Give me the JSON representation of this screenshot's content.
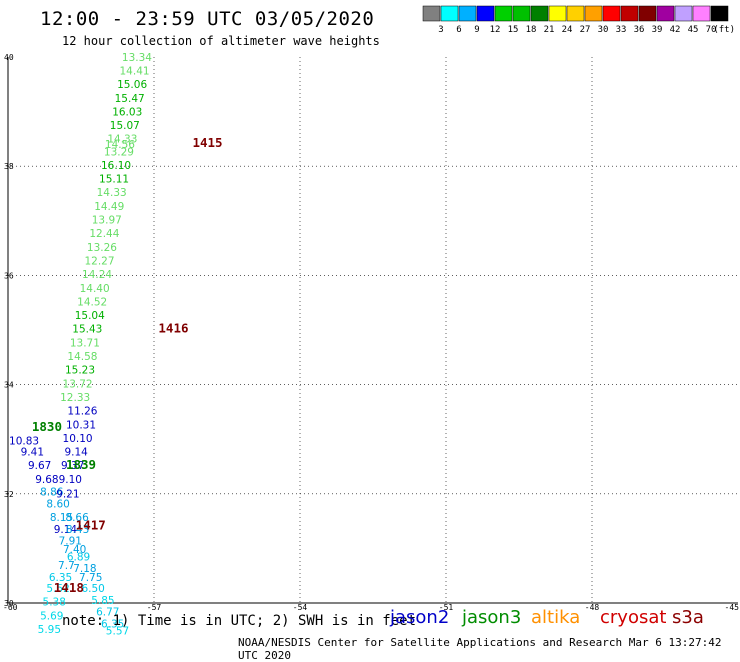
{
  "header": {
    "title": "12:00 - 23:59 UTC 03/05/2020",
    "subtitle": "12 hour collection of altimeter wave heights"
  },
  "color_scale": {
    "labels": [
      "3",
      "6",
      "9",
      "12",
      "15",
      "18",
      "21",
      "24",
      "27",
      "30",
      "33",
      "36",
      "39",
      "42",
      "45",
      "70"
    ],
    "unit": "(ft)",
    "colors": [
      "#808080",
      "#00ffff",
      "#00b0ff",
      "#0000ff",
      "#00d000",
      "#00c000",
      "#008000",
      "#ffff00",
      "#ffd000",
      "#ffa000",
      "#ff0000",
      "#c00000",
      "#800000",
      "#a000a0",
      "#c0a0ff",
      "#ff80ff",
      "#000000"
    ]
  },
  "footer": {
    "note": "note: 1) Time is in UTC; 2) SWH is in feet",
    "credit": "NOAA/NESDIS Center for Satellite Applications and Research   Mar  6 13:27:42 UTC 2020",
    "satellites": [
      {
        "name": "jason2",
        "color": "#0000c8"
      },
      {
        "name": "jason3",
        "color": "#008c00"
      },
      {
        "name": "altika",
        "color": "#ff9000"
      },
      {
        "name": "cryosat",
        "color": "#d00000"
      },
      {
        "name": "s3a",
        "color": "#8b0000"
      }
    ]
  },
  "map_data": {
    "lon_range": [
      -60,
      -45
    ],
    "lat_range": [
      30,
      40
    ],
    "lon_ticks": [
      "-60",
      "-57",
      "-54",
      "-51",
      "-48",
      "-45"
    ],
    "lat_ticks": [
      "30",
      "32",
      "34",
      "36",
      "38",
      "40"
    ],
    "times": [
      {
        "label": "1415",
        "lon": -55.9,
        "lat": 38.35,
        "color": "#800000"
      },
      {
        "label": "1416",
        "lon": -56.6,
        "lat": 34.95,
        "color": "#800000"
      },
      {
        "label": "1830",
        "lon": -59.2,
        "lat": 33.15,
        "color": "#008000"
      },
      {
        "label": "1839",
        "lon": -58.5,
        "lat": 32.45,
        "color": "#008000"
      },
      {
        "label": "1417",
        "lon": -58.3,
        "lat": 31.35,
        "color": "#800000"
      },
      {
        "label": "1418",
        "lon": -58.75,
        "lat": 30.2,
        "color": "#800000"
      }
    ],
    "observations": [
      {
        "v": "13.34",
        "lon": -57.35,
        "lat": 39.93,
        "c": "#66dd66"
      },
      {
        "v": "14.41",
        "lon": -57.4,
        "lat": 39.68,
        "c": "#66dd66"
      },
      {
        "v": "15.06",
        "lon": -57.45,
        "lat": 39.43,
        "c": "#00b000"
      },
      {
        "v": "15.47",
        "lon": -57.5,
        "lat": 39.18,
        "c": "#00b000"
      },
      {
        "v": "16.03",
        "lon": -57.55,
        "lat": 38.93,
        "c": "#00b000"
      },
      {
        "v": "15.07",
        "lon": -57.6,
        "lat": 38.68,
        "c": "#00b000"
      },
      {
        "v": "14.33",
        "lon": -57.65,
        "lat": 38.43,
        "c": "#66dd66"
      },
      {
        "v": "14.56",
        "lon": -57.7,
        "lat": 38.33,
        "c": "#66dd66"
      },
      {
        "v": "13.29",
        "lon": -57.72,
        "lat": 38.2,
        "c": "#66dd66"
      },
      {
        "v": "16.10",
        "lon": -57.78,
        "lat": 37.95,
        "c": "#00b000"
      },
      {
        "v": "15.11",
        "lon": -57.82,
        "lat": 37.7,
        "c": "#00b000"
      },
      {
        "v": "14.33",
        "lon": -57.87,
        "lat": 37.45,
        "c": "#66dd66"
      },
      {
        "v": "14.49",
        "lon": -57.92,
        "lat": 37.2,
        "c": "#66dd66"
      },
      {
        "v": "13.97",
        "lon": -57.97,
        "lat": 36.95,
        "c": "#66dd66"
      },
      {
        "v": "12.44",
        "lon": -58.02,
        "lat": 36.7,
        "c": "#66dd66"
      },
      {
        "v": "13.26",
        "lon": -58.07,
        "lat": 36.45,
        "c": "#66dd66"
      },
      {
        "v": "12.27",
        "lon": -58.12,
        "lat": 36.2,
        "c": "#66dd66"
      },
      {
        "v": "14.24",
        "lon": -58.17,
        "lat": 35.95,
        "c": "#66dd66"
      },
      {
        "v": "14.40",
        "lon": -58.22,
        "lat": 35.7,
        "c": "#66dd66"
      },
      {
        "v": "14.52",
        "lon": -58.27,
        "lat": 35.45,
        "c": "#66dd66"
      },
      {
        "v": "15.04",
        "lon": -58.32,
        "lat": 35.2,
        "c": "#00b000"
      },
      {
        "v": "15.43",
        "lon": -58.37,
        "lat": 34.95,
        "c": "#00b000"
      },
      {
        "v": "13.71",
        "lon": -58.42,
        "lat": 34.7,
        "c": "#66dd66"
      },
      {
        "v": "14.58",
        "lon": -58.47,
        "lat": 34.45,
        "c": "#66dd66"
      },
      {
        "v": "15.23",
        "lon": -58.52,
        "lat": 34.2,
        "c": "#00b000"
      },
      {
        "v": "13.72",
        "lon": -58.57,
        "lat": 33.95,
        "c": "#66dd66"
      },
      {
        "v": "12.33",
        "lon": -58.62,
        "lat": 33.7,
        "c": "#66dd66"
      },
      {
        "v": "11.26",
        "lon": -58.47,
        "lat": 33.45,
        "c": "#0000c0"
      },
      {
        "v": "10.31",
        "lon": -58.5,
        "lat": 33.2,
        "c": "#0000c0"
      },
      {
        "v": "10.10",
        "lon": -58.57,
        "lat": 32.95,
        "c": "#0000c0"
      },
      {
        "v": "10.83",
        "lon": -59.67,
        "lat": 32.9,
        "c": "#0000c0"
      },
      {
        "v": "9.41",
        "lon": -59.5,
        "lat": 32.7,
        "c": "#0000c0"
      },
      {
        "v": "9.14",
        "lon": -58.6,
        "lat": 32.7,
        "c": "#0000c0"
      },
      {
        "v": "9.67",
        "lon": -59.35,
        "lat": 32.45,
        "c": "#0000c0"
      },
      {
        "v": "9.37",
        "lon": -58.67,
        "lat": 32.45,
        "c": "#0000c0"
      },
      {
        "v": "9.68",
        "lon": -59.2,
        "lat": 32.2,
        "c": "#0000c0"
      },
      {
        "v": "9.10",
        "lon": -58.72,
        "lat": 32.2,
        "c": "#0000c0"
      },
      {
        "v": "8.86",
        "lon": -59.1,
        "lat": 31.97,
        "c": "#00a0e0"
      },
      {
        "v": "9.21",
        "lon": -58.77,
        "lat": 31.93,
        "c": "#0000c0"
      },
      {
        "v": "8.60",
        "lon": -58.97,
        "lat": 31.75,
        "c": "#00a0e0"
      },
      {
        "v": "8.15",
        "lon": -58.9,
        "lat": 31.5,
        "c": "#00a0e0"
      },
      {
        "v": "8.66",
        "lon": -58.58,
        "lat": 31.5,
        "c": "#00a0e0"
      },
      {
        "v": "9.14",
        "lon": -58.82,
        "lat": 31.28,
        "c": "#0000c0"
      },
      {
        "v": "8.43",
        "lon": -58.57,
        "lat": 31.28,
        "c": "#00a0e0"
      },
      {
        "v": "7.91",
        "lon": -58.72,
        "lat": 31.07,
        "c": "#00a0e0"
      },
      {
        "v": "7.40",
        "lon": -58.63,
        "lat": 30.92,
        "c": "#00a0e0"
      },
      {
        "v": "6.89",
        "lon": -58.55,
        "lat": 30.78,
        "c": "#00c8e8"
      },
      {
        "v": "7.7",
        "lon": -58.8,
        "lat": 30.62,
        "c": "#00a0e0"
      },
      {
        "v": "7.18",
        "lon": -58.42,
        "lat": 30.57,
        "c": "#00a0e0"
      },
      {
        "v": "6.35",
        "lon": -58.92,
        "lat": 30.4,
        "c": "#00c8e8"
      },
      {
        "v": "7.75",
        "lon": -58.3,
        "lat": 30.4,
        "c": "#00a0e0"
      },
      {
        "v": "5.52",
        "lon": -58.97,
        "lat": 30.2,
        "c": "#00d8e8"
      },
      {
        "v": "6.50",
        "lon": -58.25,
        "lat": 30.2,
        "c": "#00c8e8"
      },
      {
        "v": "5.85",
        "lon": -58.05,
        "lat": 29.98,
        "c": "#00d8e8"
      },
      {
        "v": "5.38",
        "lon": -59.05,
        "lat": 29.95,
        "c": "#00d8e8"
      },
      {
        "v": "6.77",
        "lon": -57.95,
        "lat": 29.77,
        "c": "#00c8e8"
      },
      {
        "v": "5.69",
        "lon": -59.1,
        "lat": 29.7,
        "c": "#00d8e8"
      },
      {
        "v": "6.35",
        "lon": -57.85,
        "lat": 29.55,
        "c": "#00c8e8"
      },
      {
        "v": "5.95",
        "lon": -59.15,
        "lat": 29.45,
        "c": "#00d8e8"
      },
      {
        "v": "5.57",
        "lon": -57.75,
        "lat": 29.42,
        "c": "#00d8e8"
      }
    ]
  }
}
